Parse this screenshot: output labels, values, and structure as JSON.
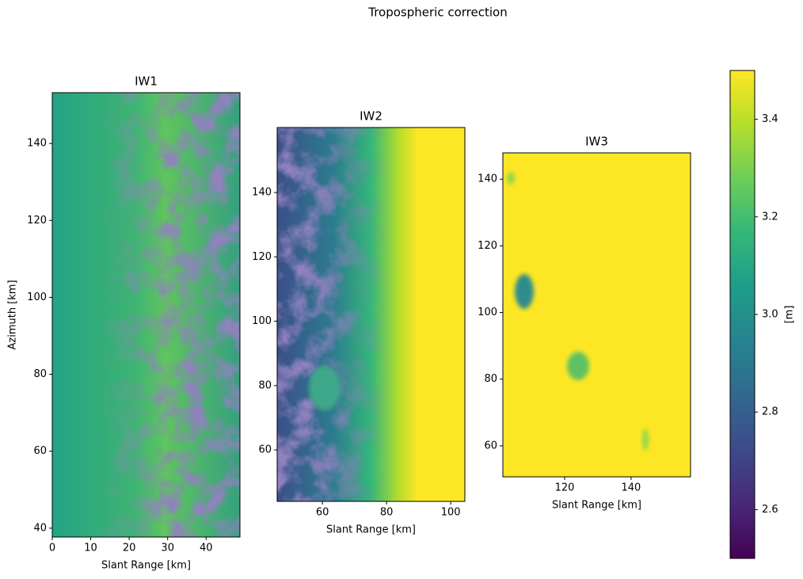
{
  "title": "Tropospheric correction",
  "chart_data": [
    {
      "type": "image",
      "title": "IW1",
      "xlabel": "Slant Range [km]",
      "ylabel": "Azimuth [km]",
      "xlim": [
        0,
        48.8
      ],
      "ylim": [
        37.7,
        153.2
      ],
      "xticks": [
        0,
        10,
        20,
        30,
        40
      ],
      "yticks": [
        40,
        60,
        80,
        100,
        120,
        140
      ]
    },
    {
      "type": "image",
      "title": "IW2",
      "xlabel": "Slant Range [km]",
      "xlim": [
        45.9,
        104.4
      ],
      "ylim": [
        44.0,
        160.2
      ],
      "xticks": [
        60,
        80,
        100
      ],
      "yticks": [
        60,
        80,
        100,
        120,
        140
      ]
    },
    {
      "type": "image",
      "title": "IW3",
      "xlabel": "Slant Range [km]",
      "xlim": [
        101.4,
        157.9
      ],
      "ylim": [
        50.7,
        147.9
      ],
      "xticks": [
        120,
        140
      ],
      "yticks": [
        60,
        80,
        100,
        120,
        140
      ]
    }
  ],
  "colorbar": {
    "label": "[m]",
    "colormap": "viridis",
    "lim": [
      2.5,
      3.5
    ],
    "ticks": [
      2.6,
      2.8,
      {
        "value": 3.0,
        "label": "3.0"
      },
      3.2,
      3.4
    ]
  }
}
